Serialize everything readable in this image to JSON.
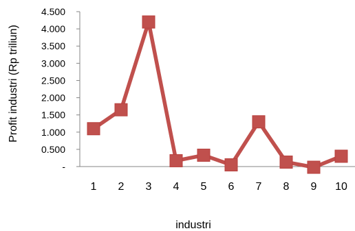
{
  "chart_data": {
    "type": "line",
    "title": "",
    "xlabel": "industri",
    "ylabel": "Profit  industri (Rp triliun)",
    "x": [
      "1",
      "2",
      "3",
      "4",
      "5",
      "6",
      "7",
      "8",
      "9",
      "10"
    ],
    "y_tick_labels": [
      "-",
      "0.500",
      "1.000",
      "1.500",
      "2.000",
      "2.500",
      "3.000",
      "3.500",
      "4.000",
      "4.500"
    ],
    "ylim": [
      0,
      4.5
    ],
    "grid": false,
    "legend": "none",
    "series": [
      {
        "values": [
          1.1,
          1.65,
          4.2,
          0.17,
          0.33,
          0.05,
          1.3,
          0.13,
          -0.02,
          0.3
        ],
        "color": "#c0504d",
        "marker": "square"
      }
    ]
  }
}
